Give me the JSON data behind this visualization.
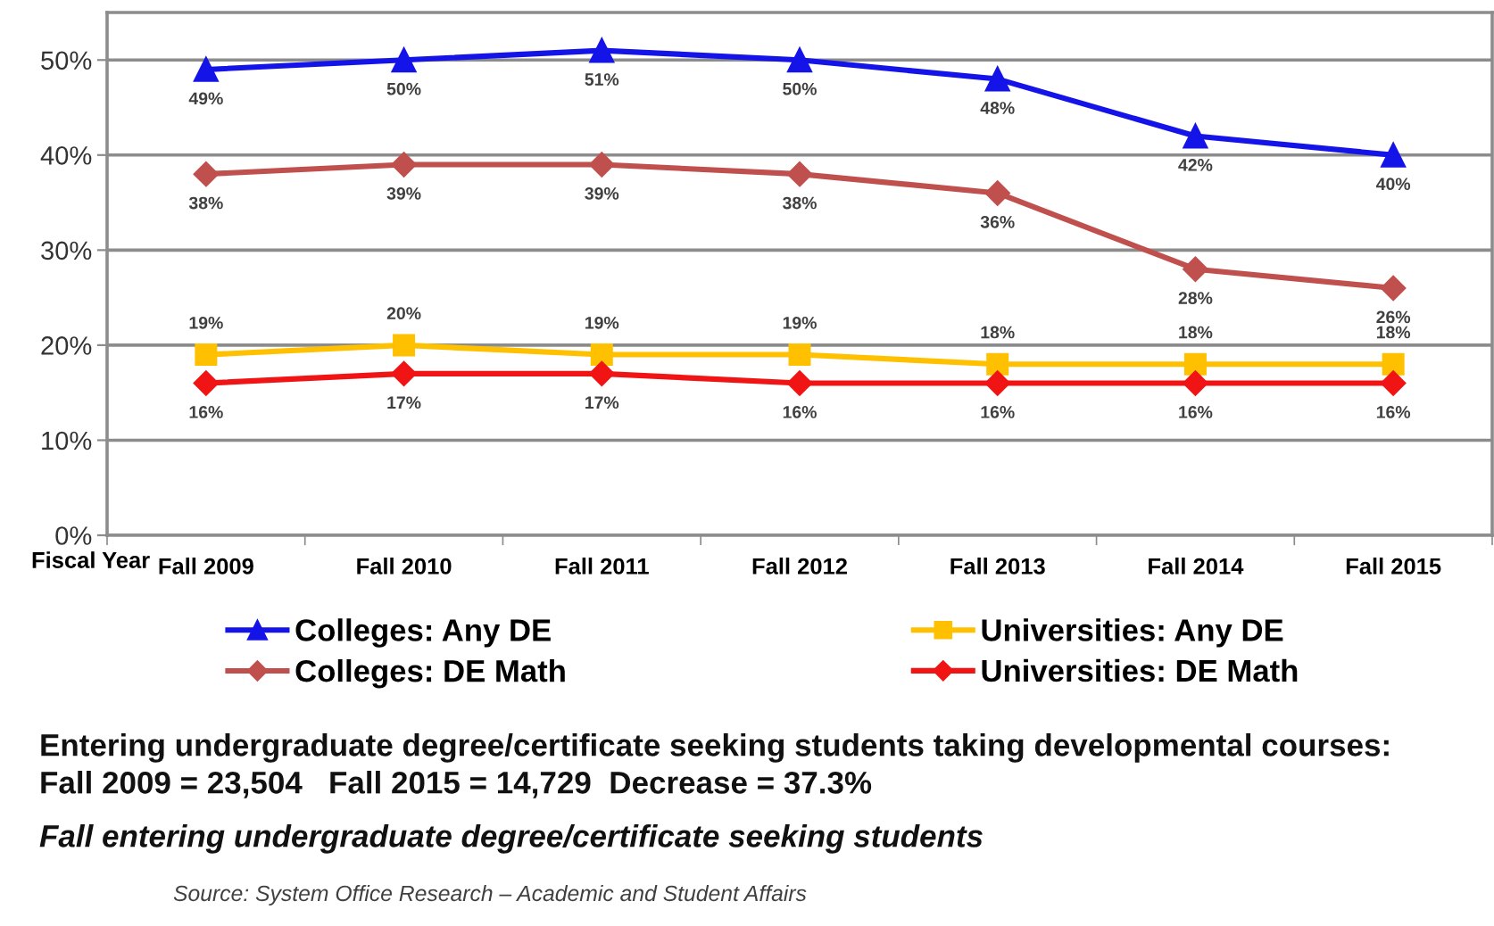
{
  "chart_data": {
    "type": "line",
    "xlabel": "Fiscal Year",
    "categories": [
      "Fall 2009",
      "Fall 2010",
      "Fall 2011",
      "Fall 2012",
      "Fall 2013",
      "Fall 2014",
      "Fall 2015"
    ],
    "ylim": [
      0,
      55
    ],
    "yticks": [
      {
        "value": 0,
        "label": "0%"
      },
      {
        "value": 10,
        "label": "10%"
      },
      {
        "value": 20,
        "label": "20%"
      },
      {
        "value": 30,
        "label": "30%"
      },
      {
        "value": 40,
        "label": "40%"
      },
      {
        "value": 50,
        "label": "50%"
      }
    ],
    "grid": "y",
    "legend": "bottom",
    "line_style": "solid",
    "series": [
      {
        "name": "Colleges: Any DE",
        "color": "#1414e8",
        "marker": "triangle",
        "values": [
          49,
          50,
          51,
          50,
          48,
          42,
          40
        ],
        "value_labels": [
          "49%",
          "50%",
          "51%",
          "50%",
          "48%",
          "42%",
          "40%"
        ]
      },
      {
        "name": "Colleges: DE Math",
        "color": "#c0504d",
        "marker": "diamond",
        "values": [
          38,
          39,
          39,
          38,
          36,
          28,
          26
        ],
        "value_labels": [
          "38%",
          "39%",
          "39%",
          "38%",
          "36%",
          "28%",
          "26%"
        ]
      },
      {
        "name": "Universities: Any DE",
        "color": "#ffc000",
        "marker": "square",
        "values": [
          19,
          20,
          19,
          19,
          18,
          18,
          18
        ],
        "value_labels": [
          "19%",
          "20%",
          "19%",
          "19%",
          "18%",
          "18%",
          "18%"
        ]
      },
      {
        "name": "Universities: DE Math",
        "color": "#f01414",
        "marker": "diamond",
        "values": [
          16,
          17,
          17,
          16,
          16,
          16,
          16
        ],
        "value_labels": [
          "16%",
          "17%",
          "17%",
          "16%",
          "16%",
          "16%",
          "16%"
        ]
      }
    ],
    "annotations": [
      "Entering undergraduate degree/certificate seeking students taking developmental courses:",
      "Fall 2009 = 23,504   Fall 2015 = 14,729  Decrease = 37.3%",
      "Fall entering undergraduate degree/certificate seeking students",
      "Source: System Office Research – Academic and Student Affairs"
    ]
  }
}
